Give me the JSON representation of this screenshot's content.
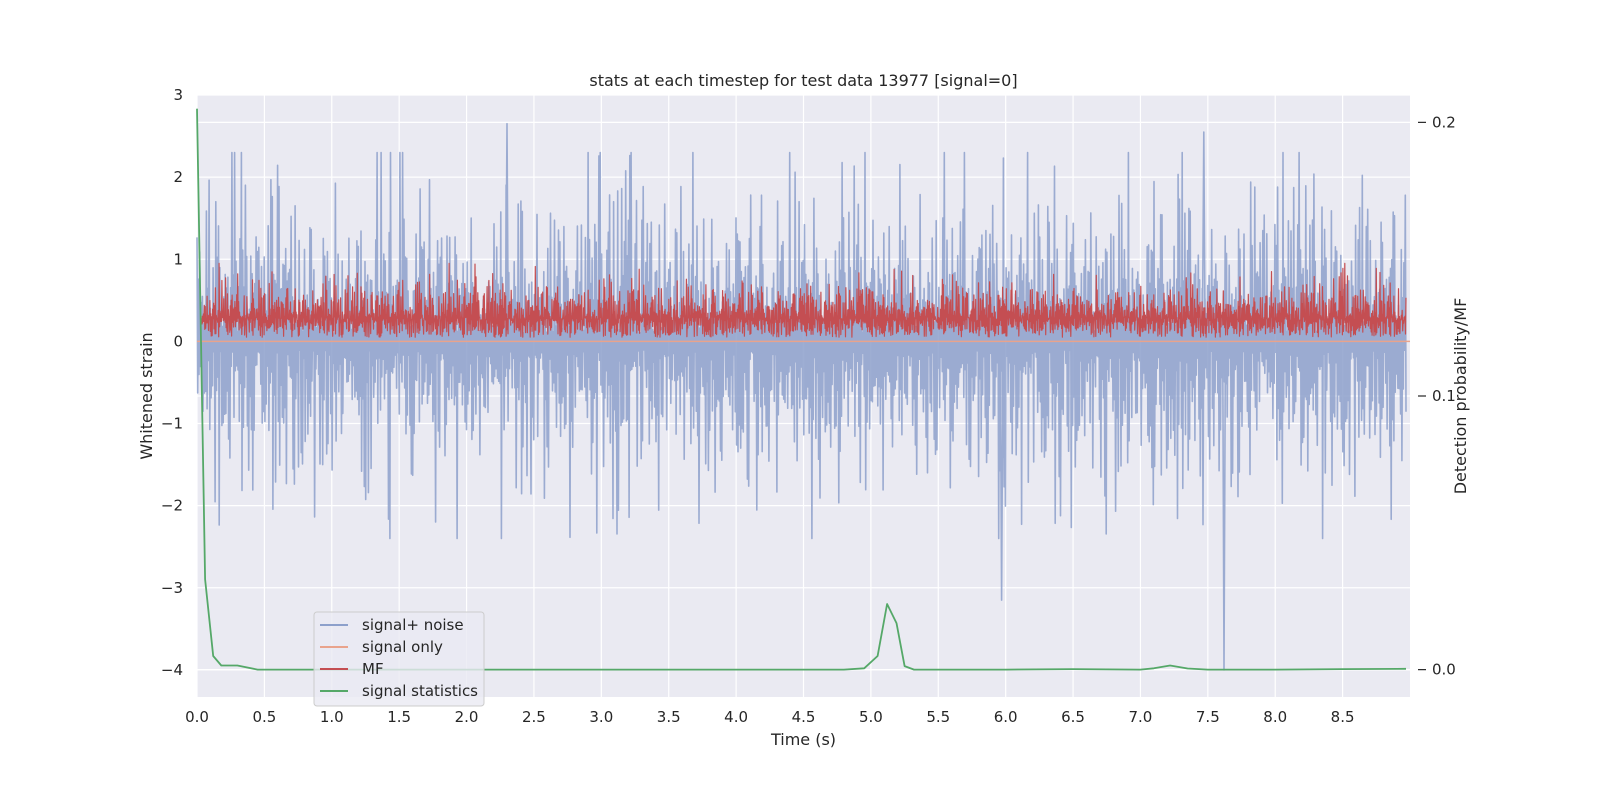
{
  "chart_data": {
    "type": "line",
    "title": "stats at each timestep for test data 13977 [signal=0]",
    "xlabel": "Time (s)",
    "ylabel": "Whitened strain",
    "y2label": "Detection probability/MF",
    "xlim": [
      0.0,
      9.0
    ],
    "ylim": [
      -4.33,
      3.0
    ],
    "y2lim": [
      -0.01,
      0.21
    ],
    "x_ticks": [
      0.0,
      0.5,
      1.0,
      1.5,
      2.0,
      2.5,
      3.0,
      3.5,
      4.0,
      4.5,
      5.0,
      5.5,
      6.0,
      6.5,
      7.0,
      7.5,
      8.0,
      8.5
    ],
    "x_tick_labels": [
      "0.0",
      "0.5",
      "1.0",
      "1.5",
      "2.0",
      "2.5",
      "3.0",
      "3.5",
      "4.0",
      "4.5",
      "5.0",
      "5.5",
      "6.0",
      "6.5",
      "7.0",
      "7.5",
      "8.0",
      "8.5"
    ],
    "y_ticks": [
      3,
      2,
      1,
      0,
      -1,
      -2,
      -3,
      -4
    ],
    "y_tick_labels": [
      "3",
      "2",
      "1",
      "0",
      "−1",
      "−2",
      "−3",
      "−4"
    ],
    "y2_ticks": [
      0.2,
      0.1,
      0.0
    ],
    "y2_tick_labels": [
      "0.2",
      "0.1",
      "0.0"
    ],
    "grid": true,
    "legend_placement": "lower-left",
    "series": [
      {
        "name": "signal+ noise",
        "axis": "left",
        "color": "#8da0cb",
        "style": "dense noise, range approx -3.2 to 2.7 with spike to -4.0 near t=7.62",
        "approx_range": [
          -2.0,
          1.9
        ],
        "extreme_points": [
          [
            2.3,
            2.65
          ],
          [
            7.47,
            2.55
          ],
          [
            5.97,
            -3.15
          ],
          [
            7.62,
            -4.0
          ]
        ]
      },
      {
        "name": "signal only",
        "axis": "left",
        "color": "#e9a38c",
        "values_note": "flat",
        "x": [
          0.0,
          9.0
        ],
        "y": [
          0.0,
          0.0
        ]
      },
      {
        "name": "MF",
        "axis": "left",
        "color": "#c44e52",
        "style": "dense positive noise band",
        "approx_range": [
          0.0,
          0.95
        ]
      },
      {
        "name": "signal statistics",
        "axis": "right",
        "color": "#55a868",
        "x": [
          0.0,
          0.06,
          0.12,
          0.18,
          0.3,
          0.45,
          0.6,
          1.0,
          2.0,
          3.0,
          4.0,
          4.8,
          4.95,
          5.05,
          5.12,
          5.19,
          5.25,
          5.32,
          5.5,
          6.0,
          6.5,
          7.0,
          7.1,
          7.22,
          7.35,
          7.5,
          8.0,
          8.5,
          8.97
        ],
        "y": [
          0.205,
          0.033,
          0.005,
          0.0015,
          0.0015,
          0.0,
          0.0,
          0.0,
          0.0,
          0.0,
          0.0,
          0.0,
          0.0005,
          0.005,
          0.024,
          0.017,
          0.0013,
          0.0,
          0.0,
          0.0,
          0.0002,
          0.0,
          0.0005,
          0.0015,
          0.0004,
          0.0,
          0.0,
          0.0002,
          0.0003
        ]
      }
    ]
  }
}
